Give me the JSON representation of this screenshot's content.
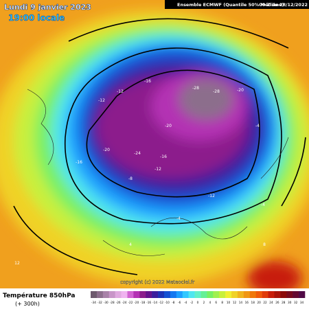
{
  "header": {
    "date": "Lundi 9 janvier 2023",
    "time": "19:00 locale",
    "model": "Ensemble ECMWF  (Quantile 50%  Médiane)",
    "run": "00 Z du 28/12/2022"
  },
  "legend": {
    "title": "Température 850hPa",
    "subtitle": "(+ 300h)",
    "scale": [
      -34,
      -32,
      -30,
      -28,
      -26,
      -24,
      -22,
      -20,
      -18,
      -16,
      -14,
      -12,
      -10,
      -8,
      -6,
      -4,
      -2,
      0,
      2,
      4,
      6,
      8,
      10,
      12,
      14,
      16,
      18,
      20,
      22,
      24,
      26,
      28,
      30,
      32,
      34
    ],
    "colors": [
      "#6e5a6e",
      "#8c6e8c",
      "#a882a8",
      "#c896c8",
      "#e0aae0",
      "#f0b4f0",
      "#d264d2",
      "#b432b4",
      "#8c1e8c",
      "#64148c",
      "#3c1e9c",
      "#1e32b4",
      "#1450d2",
      "#1478f0",
      "#1ea0ff",
      "#32c8ff",
      "#50e6f0",
      "#64f0c8",
      "#64f096",
      "#78f064",
      "#a0f050",
      "#c8f03c",
      "#f0f032",
      "#f0d228",
      "#f0b41e",
      "#f09614",
      "#f0780a",
      "#f05a0a",
      "#e13c0a",
      "#c81e0a",
      "#aa140a",
      "#8c0a0a",
      "#780a1e",
      "#640a32",
      "#500a46"
    ]
  },
  "copyright": "copyright (c) 2022 Meteociel.fr",
  "map_labels": [
    "-28",
    "-28",
    "-20",
    "-16",
    "-12",
    "-12",
    "-20",
    "-24",
    "-20",
    "-16",
    "-16",
    "-12",
    "-8",
    "-12",
    "-4",
    "-4",
    "4",
    "12",
    "8",
    "-4"
  ]
}
